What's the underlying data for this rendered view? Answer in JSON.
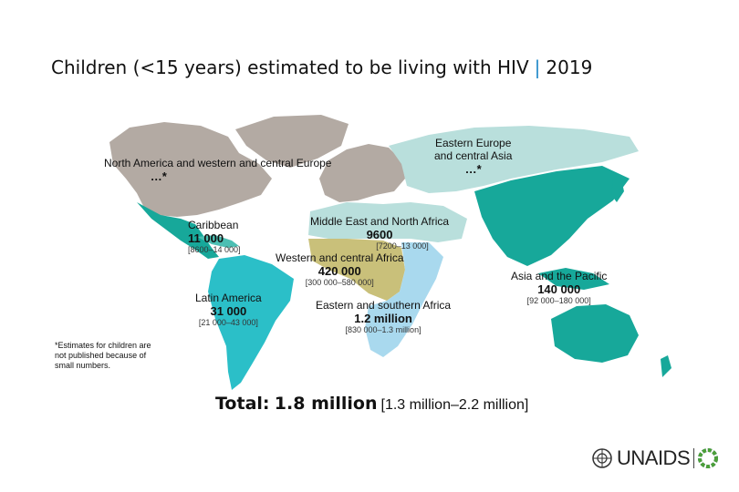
{
  "title": {
    "main": "Children (<15 years) estimated to be living with HIV",
    "separator": "|",
    "year": "2019"
  },
  "regions": {
    "north_america": {
      "name": "North America and western and central Europe",
      "value": "…*"
    },
    "eastern_europe": {
      "name_line1": "Eastern Europe",
      "name_line2": "and central Asia",
      "value": "…*"
    },
    "caribbean": {
      "name": "Caribbean",
      "value": "11 000",
      "range": "[8600–14 000]"
    },
    "mena": {
      "name": "Middle East and North Africa",
      "value": "9600",
      "range": "[7200–13 000]"
    },
    "wca": {
      "name": "Western and central Africa",
      "value": "420 000",
      "range": "[300 000–580 000]"
    },
    "asia_pacific": {
      "name": "Asia and the Pacific",
      "value": "140 000",
      "range": "[92 000–180 000]"
    },
    "latin_america": {
      "name": "Latin America",
      "value": "31 000",
      "range": "[21 000–43 000]"
    },
    "esa": {
      "name": "Eastern and southern Africa",
      "value": "1.2 million",
      "range": "[830 000–1.3 million]"
    }
  },
  "footnote": "*Estimates for children are not published because of small numbers.",
  "total": {
    "label": "Total:",
    "value": "1.8 million",
    "range": "[1.3 million–2.2 million]"
  },
  "logo": {
    "text": "UNAIDS"
  },
  "colors": {
    "gray": "#b3aaa3",
    "light_teal": "#b9dfdc",
    "teal": "#17a89a",
    "medium_teal": "#4cbfb3",
    "cyan": "#2bbfc8",
    "olive": "#c9c07a",
    "light_blue": "#a9d9ee",
    "sky": "#7fc4e6",
    "title_separator": "#1e88c8"
  }
}
